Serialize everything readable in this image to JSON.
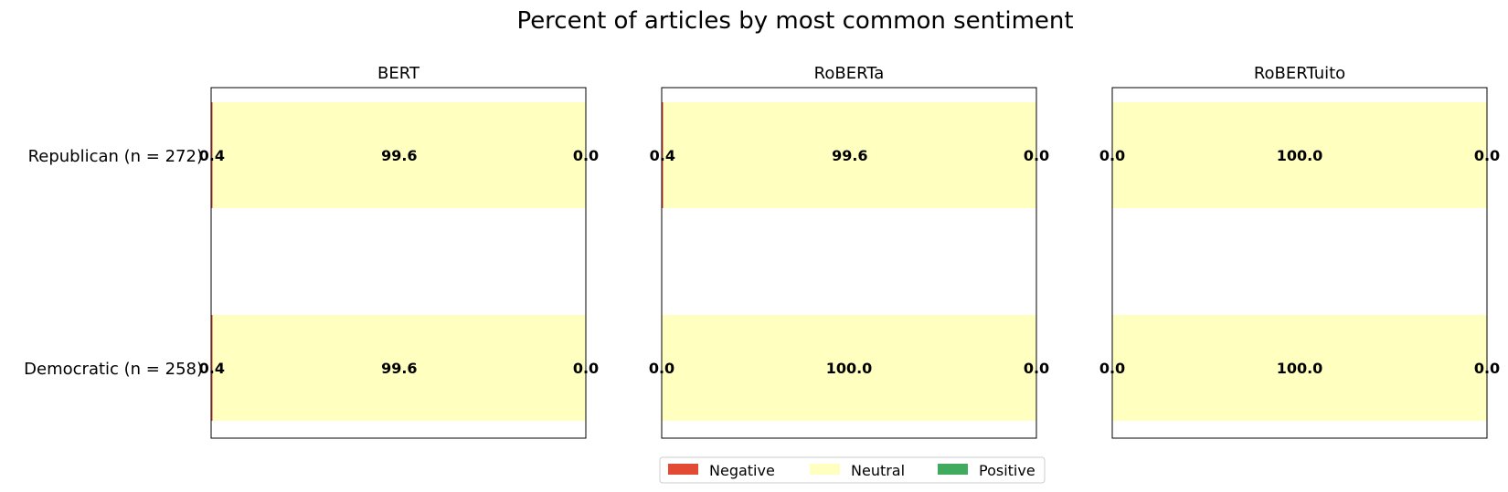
{
  "chart_data": {
    "type": "bar",
    "orientation": "horizontal",
    "stacked": true,
    "title": "Percent of articles by most common sentiment",
    "categories": [
      "Republican (n = 272)",
      "Democratic (n = 258)"
    ],
    "xlim": [
      0,
      100
    ],
    "grid": false,
    "legend": {
      "placement": "bottom-center",
      "entries": [
        "Negative",
        "Neutral",
        "Positive"
      ]
    },
    "colors": {
      "Negative": "#e34a33",
      "Neutral": "#ffffbf",
      "Positive": "#41ab5d"
    },
    "panels": [
      {
        "title": "BERT",
        "series": [
          {
            "name": "Negative",
            "values": [
              0.4,
              0.4
            ]
          },
          {
            "name": "Neutral",
            "values": [
              99.6,
              99.6
            ]
          },
          {
            "name": "Positive",
            "values": [
              0.0,
              0.0
            ]
          }
        ]
      },
      {
        "title": "RoBERTa",
        "series": [
          {
            "name": "Negative",
            "values": [
              0.4,
              0.0
            ]
          },
          {
            "name": "Neutral",
            "values": [
              99.6,
              100.0
            ]
          },
          {
            "name": "Positive",
            "values": [
              0.0,
              0.0
            ]
          }
        ]
      },
      {
        "title": "RoBERTuito",
        "series": [
          {
            "name": "Negative",
            "values": [
              0.0,
              0.0
            ]
          },
          {
            "name": "Neutral",
            "values": [
              100.0,
              100.0
            ]
          },
          {
            "name": "Positive",
            "values": [
              0.0,
              0.0
            ]
          }
        ]
      }
    ]
  }
}
